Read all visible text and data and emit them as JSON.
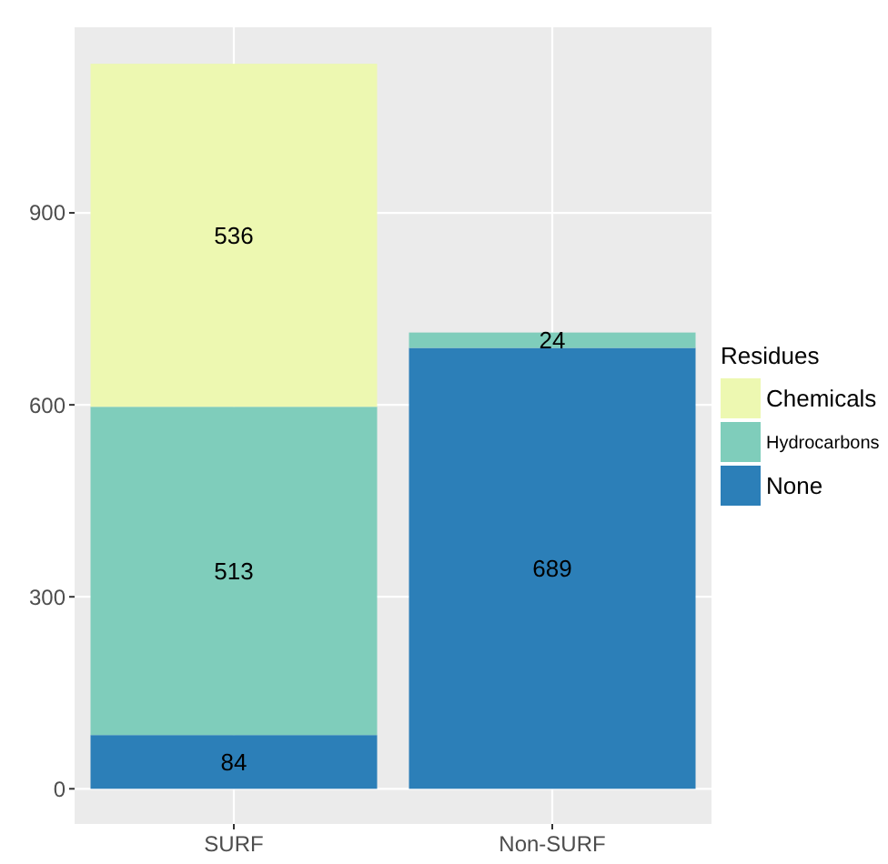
{
  "chart_data": {
    "type": "bar",
    "stacked": true,
    "categories": [
      "SURF",
      "Non-SURF"
    ],
    "series": [
      {
        "name": "None",
        "color": "#2c7fb8",
        "values": [
          84,
          689
        ]
      },
      {
        "name": "Hydrocarbons",
        "color": "#7fcdbb",
        "values": [
          513,
          24
        ]
      },
      {
        "name": "Chemicals",
        "color": "#edf8b1",
        "values": [
          536,
          null
        ]
      }
    ],
    "ylim": [
      -55,
      1190
    ],
    "yticks": [
      0,
      300,
      600,
      900
    ],
    "grid": true,
    "legend": "right",
    "legend_title": "Residues",
    "data_labels": true
  }
}
